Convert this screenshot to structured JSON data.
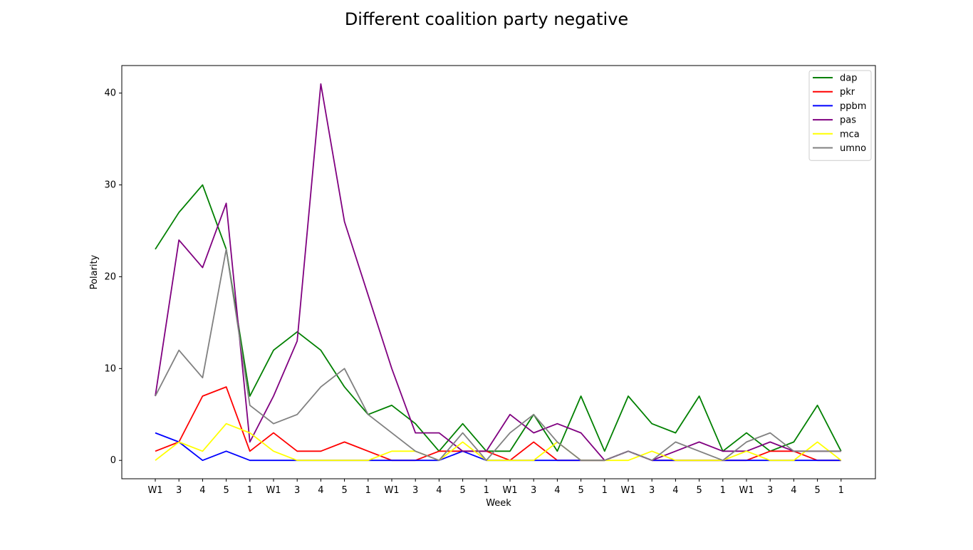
{
  "chart_data": {
    "type": "line",
    "title": "Different coalition party negative",
    "xlabel": "Week",
    "ylabel": "Polarity",
    "categories": [
      "W1",
      "3",
      "4",
      "5",
      "1",
      "W1",
      "3",
      "4",
      "5",
      "1",
      "W1",
      "3",
      "4",
      "5",
      "1",
      "W1",
      "3",
      "4",
      "5",
      "1",
      "W1",
      "3",
      "4",
      "5",
      "1",
      "W1",
      "3",
      "4",
      "5",
      "1"
    ],
    "ylim": [
      -2,
      43
    ],
    "yticks": [
      0,
      10,
      20,
      30,
      40
    ],
    "grid": false,
    "legend_position": "top-right",
    "series": [
      {
        "name": "dap",
        "color": "#008000",
        "values": [
          23,
          27,
          30,
          23,
          7,
          12,
          14,
          12,
          8,
          5,
          6,
          4,
          1,
          4,
          1,
          1,
          5,
          1,
          7,
          1,
          7,
          4,
          3,
          7,
          1,
          3,
          1,
          2,
          6,
          1
        ]
      },
      {
        "name": "pkr",
        "color": "#ff0000",
        "values": [
          1,
          2,
          7,
          8,
          1,
          3,
          1,
          1,
          2,
          1,
          0,
          0,
          1,
          1,
          1,
          0,
          2,
          0,
          0,
          0,
          1,
          0,
          0,
          0,
          0,
          0,
          1,
          1,
          0,
          0
        ]
      },
      {
        "name": "ppbm",
        "color": "#0000ff",
        "values": [
          3,
          2,
          0,
          1,
          0,
          0,
          0,
          0,
          0,
          0,
          0,
          0,
          0,
          1,
          0,
          0,
          0,
          0,
          0,
          0,
          1,
          0,
          0,
          0,
          0,
          0,
          0,
          0,
          0,
          0
        ]
      },
      {
        "name": "pas",
        "color": "#800080",
        "values": [
          7,
          24,
          21,
          28,
          2,
          7,
          13,
          41,
          26,
          18,
          10,
          3,
          3,
          1,
          1,
          5,
          3,
          4,
          3,
          0,
          1,
          0,
          1,
          2,
          1,
          1,
          2,
          1,
          1,
          1
        ]
      },
      {
        "name": "mca",
        "color": "#ffff00",
        "values": [
          0,
          2,
          1,
          4,
          3,
          1,
          0,
          0,
          0,
          0,
          1,
          1,
          0,
          2,
          0,
          0,
          0,
          2,
          0,
          0,
          0,
          1,
          0,
          0,
          0,
          1,
          0,
          0,
          2,
          0
        ]
      },
      {
        "name": "umno",
        "color": "#808080",
        "values": [
          7,
          12,
          9,
          23,
          6,
          4,
          5,
          8,
          10,
          5,
          3,
          1,
          0,
          3,
          0,
          3,
          5,
          2,
          0,
          0,
          1,
          0,
          2,
          1,
          0,
          2,
          3,
          1,
          1,
          1
        ]
      }
    ]
  }
}
